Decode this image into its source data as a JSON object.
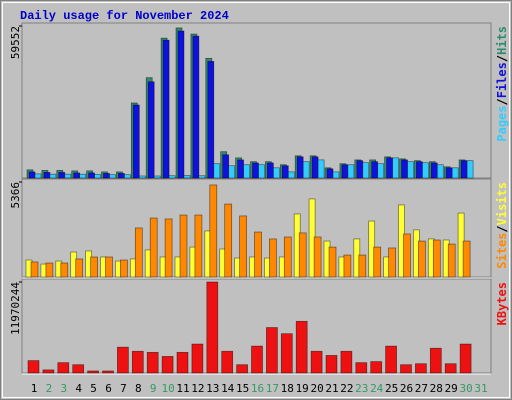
{
  "chart_data": [
    {
      "type": "bar",
      "title": "Daily usage for November 2024",
      "separator": "/",
      "ylim": [
        0,
        59552
      ],
      "yticks": [
        59552
      ],
      "series": [
        {
          "name": "Pages",
          "color": "#33ccff",
          "values": [
            1600,
            1500,
            1500,
            1500,
            1400,
            1300,
            1300,
            800,
            800,
            900,
            1000,
            900,
            5600,
            4800,
            5200,
            5200,
            4000,
            2400,
            6400,
            7100,
            2400,
            5200,
            6000,
            5600,
            7900,
            6400,
            6000,
            5200,
            4000,
            6800,
            null
          ]
        },
        {
          "name": "Files",
          "color": "#1111dd",
          "values": [
            2400,
            2200,
            2200,
            2000,
            2000,
            1800,
            1800,
            28600,
            37700,
            54000,
            57600,
            55600,
            45700,
            9100,
            7100,
            5900,
            5900,
            4800,
            8300,
            8300,
            3600,
            5200,
            6800,
            6400,
            7900,
            7100,
            6400,
            5900,
            4000,
            6800,
            null
          ]
        },
        {
          "name": "Hits",
          "color": "#2e8b6e",
          "values": [
            3200,
            3000,
            3000,
            2800,
            2800,
            2400,
            2400,
            29400,
            39300,
            54800,
            58800,
            56400,
            46900,
            10300,
            7900,
            6400,
            6400,
            5200,
            8700,
            8700,
            4000,
            5600,
            7100,
            7100,
            8300,
            7500,
            6800,
            6400,
            4400,
            7100,
            null
          ]
        }
      ]
    },
    {
      "type": "bar",
      "separator": "/",
      "ylim": [
        0,
        5366
      ],
      "yticks": [
        5366
      ],
      "series": [
        {
          "name": "Sites",
          "color": "#ff8800",
          "values": [
            850,
            790,
            790,
            1020,
            1130,
            1130,
            960,
            2770,
            3330,
            3280,
            3500,
            3500,
            5200,
            4120,
            3450,
            2540,
            2150,
            2260,
            2490,
            2260,
            1690,
            1240,
            1240,
            1690,
            1640,
            2430,
            2030,
            2090,
            1860,
            2030,
            null
          ]
        },
        {
          "name": "Visits",
          "color": "#ffff33",
          "values": [
            960,
            730,
            900,
            1410,
            1470,
            1130,
            900,
            1020,
            1530,
            1130,
            1130,
            1690,
            2600,
            1580,
            1070,
            1130,
            1070,
            1130,
            3560,
            4410,
            2030,
            1130,
            2150,
            3160,
            1130,
            4070,
            2660,
            2150,
            2090,
            3610,
            null
          ]
        }
      ]
    },
    {
      "type": "bar",
      "ylim": [
        0,
        11970244
      ],
      "yticks": [
        11970244
      ],
      "series": [
        {
          "name": "KBytes",
          "color": "#ee1111",
          "values": [
            1630000,
            410000,
            1360000,
            1090000,
            270000,
            270000,
            3400000,
            2860000,
            2720000,
            2180000,
            2720000,
            3810000,
            11970244,
            2860000,
            1090000,
            3540000,
            5980000,
            5170000,
            6800000,
            2860000,
            2310000,
            2860000,
            1360000,
            1500000,
            3540000,
            1090000,
            1220000,
            3260000,
            1220000,
            3810000,
            null
          ]
        }
      ],
      "categories": [
        "1",
        "2",
        "3",
        "4",
        "5",
        "6",
        "7",
        "8",
        "9",
        "10",
        "11",
        "12",
        "13",
        "14",
        "15",
        "16",
        "17",
        "18",
        "19",
        "20",
        "21",
        "22",
        "23",
        "24",
        "25",
        "26",
        "27",
        "28",
        "29",
        "30",
        "31"
      ],
      "category_colors": [
        "#000000",
        "#339966",
        "#339966",
        "#000000",
        "#000000",
        "#000000",
        "#000000",
        "#000000",
        "#339966",
        "#339966",
        "#000000",
        "#000000",
        "#000000",
        "#000000",
        "#000000",
        "#339966",
        "#339966",
        "#000000",
        "#000000",
        "#000000",
        "#000000",
        "#000000",
        "#339966",
        "#339966",
        "#000000",
        "#000000",
        "#000000",
        "#000000",
        "#000000",
        "#339966",
        "#339966"
      ]
    }
  ]
}
